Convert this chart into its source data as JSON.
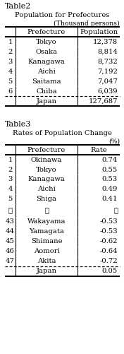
{
  "table2_title": "Table2",
  "table2_subtitle": "Population for Prefectures",
  "table2_unit": "(Thousand persons)",
  "table2_col2": "Prefecture",
  "table2_col3": "Population",
  "table2_rows": [
    [
      "1",
      "Tokyo",
      "12,378"
    ],
    [
      "2",
      "Osaka",
      "8,814"
    ],
    [
      "3",
      "Kanagawa",
      "8,732"
    ],
    [
      "4",
      "Aichi",
      "7,192"
    ],
    [
      "5",
      "Saitama",
      "7,047"
    ],
    [
      "6",
      "Chiba",
      "6,039"
    ]
  ],
  "table2_footer": [
    "",
    "Japan",
    "127,687"
  ],
  "table3_title": "Table3",
  "table3_subtitle": "Rates of Population Change",
  "table3_unit": "(%)",
  "table3_col2": "Prefecture",
  "table3_col3": "Rate",
  "table3_rows": [
    [
      "1",
      "Okinawa",
      "0.74"
    ],
    [
      "2",
      "Tokyo",
      "0.55"
    ],
    [
      "3",
      "Kanagawa",
      "0.53"
    ],
    [
      "4",
      "Aichi",
      "0.49"
    ],
    [
      "5",
      "Shiga",
      "0.41"
    ],
    [
      "⋮",
      "⋮",
      "⋮"
    ],
    [
      "43",
      "Wakayama",
      "-0.53"
    ],
    [
      "44",
      "Yamagata",
      "-0.53"
    ],
    [
      "45",
      "Shimane",
      "-0.62"
    ],
    [
      "46",
      "Aomori",
      "-0.64"
    ],
    [
      "47",
      "Akita",
      "-0.72"
    ]
  ],
  "table3_footer": [
    "",
    "Japan",
    "0.05"
  ],
  "bg_color": "#ffffff",
  "text_color": "#000000",
  "font_size": 7.2,
  "title_font_size": 8.0
}
